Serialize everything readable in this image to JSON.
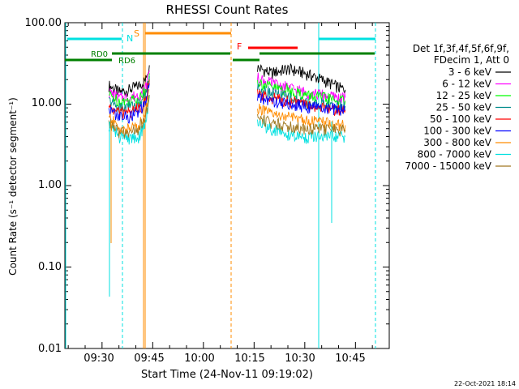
{
  "chart_data": {
    "type": "line",
    "title": "RHESSI Count Rates",
    "xlabel": "Start Time (24-Nov-11 09:19:02)",
    "ylabel": "Count Rate (s⁻¹ detector segment⁻¹)",
    "y_scale": "log",
    "ylim": [
      0.01,
      100
    ],
    "xlim": [
      "09:19",
      "10:55"
    ],
    "y_ticks": [
      "0.01",
      "0.10",
      "1.00",
      "10.00",
      "100.00"
    ],
    "x_ticks": [
      "09:30",
      "09:45",
      "10:00",
      "10:15",
      "10:30",
      "10:45"
    ],
    "legend_header": [
      "Det 1f,3f,4f,5f,6f,9f,",
      "FDecim 1, Att 0"
    ],
    "series": [
      {
        "name": "3 - 6 keV",
        "color": "#000000",
        "x": [
          "09:32",
          "09:35",
          "09:38",
          "09:41",
          "09:43",
          "09:44",
          "10:16",
          "10:20",
          "10:25",
          "10:30",
          "10:35",
          "10:40",
          "10:42"
        ],
        "y": [
          17,
          14,
          15,
          17,
          20,
          30,
          28,
          24,
          27,
          24,
          20,
          16,
          15
        ]
      },
      {
        "name": "6 - 12 keV",
        "color": "#ff00ff",
        "x": [
          "09:32",
          "09:35",
          "09:38",
          "09:41",
          "09:43",
          "09:44",
          "10:16",
          "10:20",
          "10:25",
          "10:30",
          "10:35",
          "10:40",
          "10:42"
        ],
        "y": [
          14,
          12,
          12,
          13,
          16,
          26,
          21,
          18,
          16,
          14,
          13,
          12,
          12
        ]
      },
      {
        "name": "12 - 25 keV",
        "color": "#00ff00",
        "x": [
          "09:32",
          "09:35",
          "09:38",
          "09:41",
          "09:43",
          "09:44",
          "10:16",
          "10:20",
          "10:25",
          "10:30",
          "10:35",
          "10:40",
          "10:42"
        ],
        "y": [
          13,
          11,
          11,
          12,
          15,
          24,
          19,
          16,
          15,
          13,
          12,
          11,
          11
        ]
      },
      {
        "name": "25 - 50 keV",
        "color": "#008c8c",
        "x": [
          "09:32",
          "09:35",
          "09:38",
          "09:41",
          "09:43",
          "09:44",
          "10:16",
          "10:20",
          "10:25",
          "10:30",
          "10:35",
          "10:40",
          "10:42"
        ],
        "y": [
          11,
          9,
          9.5,
          10,
          13,
          22,
          16,
          14,
          12,
          10.5,
          10,
          9.5,
          9.5
        ]
      },
      {
        "name": "50 - 100 keV",
        "color": "#ff0000",
        "x": [
          "09:32",
          "09:35",
          "09:38",
          "09:41",
          "09:43",
          "09:44",
          "10:16",
          "10:20",
          "10:25",
          "10:30",
          "10:35",
          "10:40",
          "10:42"
        ],
        "y": [
          9,
          8,
          8,
          9,
          11,
          20,
          13,
          12,
          11,
          10,
          9,
          8.5,
          8.5
        ]
      },
      {
        "name": "100 - 300 keV",
        "color": "#0000ff",
        "x": [
          "09:32",
          "09:35",
          "09:38",
          "09:41",
          "09:43",
          "09:44",
          "10:16",
          "10:20",
          "10:25",
          "10:30",
          "10:35",
          "10:40",
          "10:42"
        ],
        "y": [
          8.5,
          7,
          7,
          8,
          10,
          18,
          12,
          11,
          10,
          9.5,
          9,
          8.5,
          8.5
        ]
      },
      {
        "name": "300 - 800 keV",
        "color": "#ff8c00",
        "x": [
          "09:32",
          "09:35",
          "09:38",
          "09:41",
          "09:43",
          "09:44",
          "10:16",
          "10:20",
          "10:25",
          "10:30",
          "10:35",
          "10:40",
          "10:42"
        ],
        "y": [
          7,
          5,
          5,
          5.5,
          8,
          15,
          9,
          7.5,
          7,
          6.5,
          6,
          5.5,
          5.5
        ]
      },
      {
        "name": "800 - 7000 keV",
        "color": "#00e0e0",
        "x": [
          "09:32",
          "09:35",
          "09:38",
          "09:41",
          "09:43",
          "09:44",
          "10:16",
          "10:20",
          "10:25",
          "10:30",
          "10:35",
          "10:40",
          "10:42"
        ],
        "y": [
          5.5,
          4,
          3.8,
          4,
          6,
          12,
          6,
          5,
          4.2,
          3.9,
          4,
          4,
          4
        ]
      },
      {
        "name": "7000 - 15000 keV",
        "color": "#a07820",
        "x": [
          "09:32",
          "09:35",
          "09:38",
          "09:41",
          "09:43",
          "09:44",
          "10:16",
          "10:20",
          "10:25",
          "10:30",
          "10:35",
          "10:40",
          "10:42"
        ],
        "y": [
          6,
          4.5,
          4.5,
          5,
          7,
          13,
          7,
          6,
          5.5,
          5,
          5,
          4.8,
          4.8
        ]
      }
    ],
    "annotations": [
      {
        "label": "N",
        "color": "#00e0e0"
      },
      {
        "label": "S",
        "color": "#ff8c00"
      },
      {
        "label": "F",
        "color": "#ff0000"
      },
      {
        "label": "RD0",
        "color": "#008000"
      },
      {
        "label": "RD6",
        "color": "#008000"
      }
    ],
    "footer_date": "22-Oct-2021 18:14"
  }
}
